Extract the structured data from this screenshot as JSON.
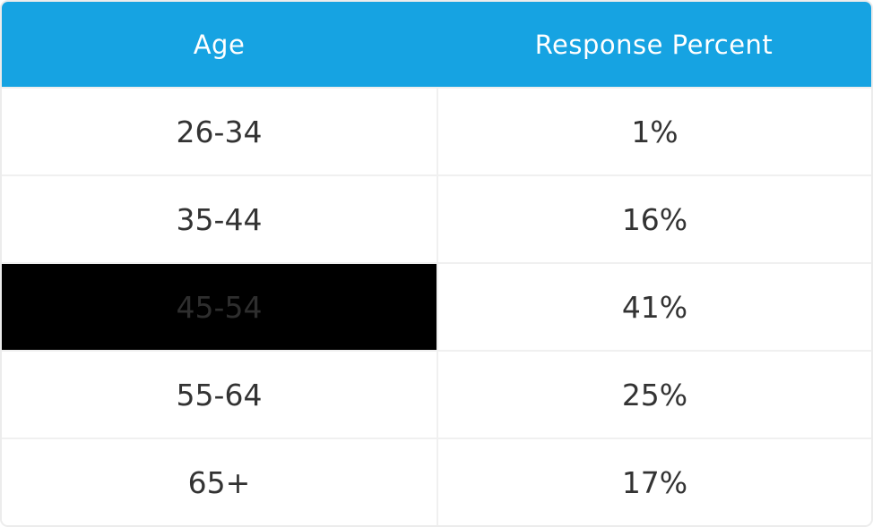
{
  "table": {
    "columns": [
      {
        "label": "Age"
      },
      {
        "label": "Response Percent"
      }
    ],
    "rows": [
      {
        "age": "26-34",
        "percent": "1%",
        "highlighted": false
      },
      {
        "age": "35-44",
        "percent": "16%",
        "highlighted": false
      },
      {
        "age": "45-54",
        "percent": "41%",
        "highlighted": true
      },
      {
        "age": "55-64",
        "percent": "25%",
        "highlighted": false
      },
      {
        "age": "65+",
        "percent": "17%",
        "highlighted": false
      }
    ]
  },
  "colors": {
    "header_bg": "#16a3e2",
    "header_text": "#ffffff",
    "cell_text": "#333333",
    "grid_line": "#f0f0f0",
    "card_border": "#ececec",
    "highlight_bg": "#000000",
    "highlight_text": "#2e2e2e"
  },
  "chart_data": {
    "type": "table",
    "title": "",
    "columns": [
      "Age",
      "Response Percent"
    ],
    "categories": [
      "26-34",
      "35-44",
      "45-54",
      "55-64",
      "65+"
    ],
    "values": [
      1,
      16,
      41,
      25,
      17
    ],
    "value_unit": "%",
    "highlighted_category": "45-54",
    "legend_position": "none",
    "grid": true
  }
}
